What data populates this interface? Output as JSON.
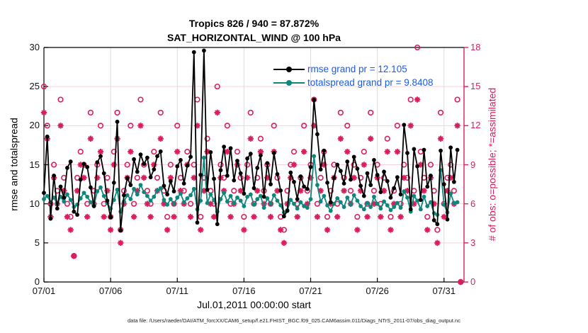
{
  "title": {
    "line1": "Tropics 826 / 940 = 87.872%",
    "line2": "SAT_HORIZONTAL_WIND @ 100 hPa"
  },
  "legend": [
    {
      "label": "rmse grand pr = 12.105",
      "color": "#000000"
    },
    {
      "label": "totalspread grand pr = 9.8408",
      "color": "#0e867c"
    }
  ],
  "footer": {
    "data_file": "data file: /Users/raeder/DAI/ATM_forcXX/CAM6_setup/f.e21.FHIST_BGC.f09_025.CAM6assim.011/Diags_NTrS_2011-07/obs_diag_output.nc"
  },
  "colors": {
    "obs_magenta": "#d91e5c",
    "teal": "#0e867c",
    "black": "#000000",
    "legend_blue": "#1a5aec",
    "grid_horizontal": "#f5d2de",
    "grid_vertical": "#dcdcdc"
  },
  "chart_data": {
    "type": "line",
    "title": "Tropics 826 / 940 = 87.872%",
    "subtitle": "SAT_HORIZONTAL_WIND @ 100 hPa",
    "region": "Tropics",
    "assimilated_total": 826,
    "possible_total": 940,
    "percent_assimilated": "87.872%",
    "x": {
      "label": "Jul.01,2011 00:00:00 start",
      "tick_labels": [
        "07/01",
        "07/06",
        "07/11",
        "07/16",
        "07/21",
        "07/26",
        "07/31"
      ],
      "tick_days": [
        0,
        5,
        10,
        15,
        20,
        25,
        30
      ],
      "range_days": [
        0,
        31.5
      ],
      "time_step_days": 0.25
    },
    "y_left": {
      "label": "rmse and totalspread",
      "ticks": [
        0,
        5,
        10,
        15,
        20,
        25,
        30
      ],
      "range": [
        0,
        30
      ]
    },
    "y_right": {
      "label": "# of obs: o=possible; *=assimilated",
      "ticks": [
        0,
        3,
        6,
        9,
        12,
        15,
        18
      ],
      "range": [
        0,
        18
      ]
    },
    "grid": {
      "horizontal": true,
      "vertical": true
    },
    "legend_position": "top-right-inside",
    "series": [
      {
        "name": "rmse",
        "grand_pr": 12.105,
        "axis": "left",
        "style": "line-dot",
        "color": "#000000",
        "values": [
          11.4,
          18.6,
          8.1,
          13.6,
          9.4,
          12.2,
          10.8,
          14.6,
          15.4,
          9.0,
          8.6,
          13.1,
          15.1,
          14.7,
          12.1,
          9.7,
          15.3,
          16.1,
          13.9,
          10.4,
          8.3,
          12.7,
          20.5,
          6.6,
          11.1,
          13.3,
          12.4,
          15.7,
          14.1,
          16.3,
          15.1,
          15.9,
          13.4,
          14.4,
          16.1,
          16.7,
          12.3,
          11.2,
          12.9,
          11.6,
          14.8,
          15.6,
          12.6,
          14.9,
          16.0,
          29.4,
          7.6,
          13.7,
          29.6,
          11.8,
          16.6,
          13.2,
          7.4,
          14.3,
          17.3,
          13.6,
          17.1,
          13.0,
          15.5,
          13.9,
          11.3,
          15.8,
          16.4,
          12.0,
          14.6,
          16.2,
          10.9,
          15.2,
          12.5,
          16.5,
          13.8,
          11.7,
          8.4,
          9.1,
          14.0,
          12.8,
          10.6,
          13.5,
          12.2,
          11.9,
          14.7,
          23.3,
          18.9,
          14.4,
          16.8,
          12.7,
          10.2,
          13.3,
          15.0,
          14.2,
          12.6,
          15.4,
          13.1,
          16.0,
          14.5,
          12.3,
          11.0,
          13.9,
          12.4,
          15.6,
          13.7,
          11.5,
          14.1,
          12.9,
          10.8,
          12.0,
          13.4,
          11.2,
          20.1,
          16.5,
          9.3,
          17.0,
          14.8,
          10.5,
          16.9,
          12.2,
          13.6,
          7.9,
          7.4,
          16.8,
          12.5,
          8.0,
          17.2,
          12.8,
          16.9,
          null
        ]
      },
      {
        "name": "totalspread",
        "grand_pr": 9.8408,
        "axis": "left",
        "style": "line-dot",
        "color": "#0e867c",
        "values": [
          10.6,
          11.0,
          10.2,
          10.8,
          10.0,
          10.9,
          10.3,
          11.2,
          10.5,
          9.6,
          9.9,
          10.7,
          11.4,
          10.9,
          10.2,
          9.8,
          11.6,
          12.1,
          11.0,
          10.1,
          9.4,
          10.5,
          11.8,
          9.0,
          10.3,
          11.1,
          10.6,
          11.9,
          11.2,
          12.4,
          11.5,
          11.0,
          10.4,
          10.9,
          11.7,
          12.0,
          10.5,
          9.9,
          10.6,
          10.0,
          10.8,
          11.3,
          10.2,
          10.7,
          11.1,
          11.9,
          9.3,
          10.4,
          15.9,
          10.1,
          11.2,
          10.5,
          9.0,
          10.6,
          11.4,
          10.3,
          11.0,
          10.1,
          10.8,
          10.4,
          9.7,
          10.9,
          11.2,
          9.9,
          10.6,
          11.0,
          9.5,
          10.7,
          10.0,
          11.1,
          10.4,
          9.8,
          8.9,
          9.2,
          10.5,
          10.0,
          9.4,
          10.2,
          9.7,
          9.5,
          10.6,
          16.1,
          12.4,
          10.3,
          11.0,
          9.8,
          9.1,
          10.0,
          10.7,
          10.2,
          9.6,
          10.8,
          9.9,
          11.1,
          10.4,
          9.7,
          9.3,
          10.1,
          9.6,
          10.9,
          10.0,
          9.4,
          10.3,
          9.8,
          9.2,
          9.6,
          10.1,
          9.5,
          11.6,
          10.8,
          9.0,
          11.0,
          10.4,
          9.3,
          10.9,
          9.7,
          10.2,
          8.8,
          8.6,
          14.3,
          9.9,
          8.9,
          11.3,
          10.1,
          10.2,
          null
        ]
      },
      {
        "name": "possible",
        "axis": "right",
        "style": "scatter",
        "marker": "open-circle",
        "color": "#d91e5c",
        "values": [
          15,
          12,
          6,
          9,
          7,
          14,
          8,
          6,
          5,
          2,
          8,
          10,
          9,
          6,
          13,
          7,
          9,
          12,
          6,
          8,
          5,
          10,
          13,
          4,
          7,
          9,
          12,
          6,
          8,
          14,
          9,
          7,
          6,
          10,
          8,
          13,
          7,
          5,
          9,
          6,
          12,
          8,
          7,
          10,
          6,
          9,
          14,
          5,
          8,
          11,
          7,
          6,
          15,
          9,
          8,
          12,
          6,
          7,
          10,
          8,
          5,
          9,
          13,
          6,
          8,
          11,
          7,
          9,
          6,
          12,
          8,
          5,
          4,
          7,
          9,
          10,
          6,
          8,
          12,
          7,
          9,
          14,
          6,
          8,
          10,
          5,
          7,
          9,
          6,
          13,
          8,
          12,
          7,
          9,
          5,
          8,
          10,
          6,
          13,
          7,
          9,
          6,
          8,
          11,
          5,
          7,
          12,
          6,
          9,
          8,
          14,
          7,
          18,
          10,
          8,
          5,
          9,
          7,
          4,
          13,
          6,
          8,
          9,
          7,
          14,
          0
        ]
      },
      {
        "name": "assimilated",
        "axis": "right",
        "style": "scatter",
        "marker": "asterisk",
        "color": "#d91e5c",
        "values": [
          13,
          11,
          5,
          8,
          6,
          12,
          7,
          5,
          4,
          2,
          7,
          9,
          8,
          5,
          11,
          6,
          8,
          10,
          5,
          7,
          4,
          9,
          11,
          3,
          6,
          8,
          10,
          5,
          7,
          12,
          8,
          6,
          5,
          9,
          7,
          11,
          6,
          4,
          8,
          5,
          10,
          7,
          6,
          9,
          5,
          8,
          12,
          4,
          7,
          10,
          6,
          5,
          13,
          8,
          7,
          10,
          5,
          6,
          9,
          7,
          4,
          8,
          11,
          5,
          7,
          10,
          6,
          8,
          5,
          10,
          7,
          4,
          3,
          6,
          8,
          9,
          5,
          7,
          10,
          6,
          8,
          12,
          5,
          7,
          9,
          4,
          6,
          8,
          5,
          11,
          7,
          10,
          6,
          8,
          4,
          7,
          9,
          5,
          11,
          6,
          8,
          5,
          7,
          10,
          4,
          6,
          10,
          5,
          8,
          7,
          12,
          6,
          14,
          9,
          7,
          4,
          8,
          6,
          3,
          11,
          5,
          7,
          8,
          6,
          12,
          0
        ]
      }
    ]
  }
}
